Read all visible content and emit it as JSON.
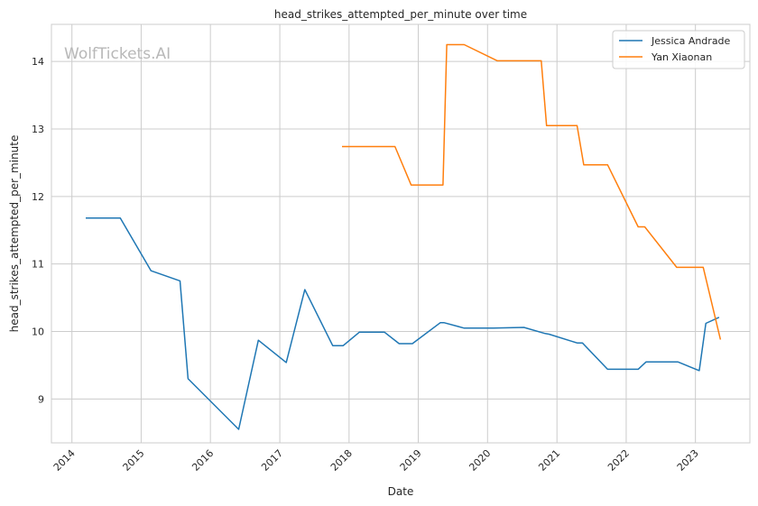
{
  "chart_data": {
    "type": "line",
    "title": "head_strikes_attempted_per_minute over time",
    "xlabel": "Date",
    "ylabel": "head_strikes_attempted_per_minute",
    "watermark": "WolfTickets.AI",
    "x_ticks": [
      "2014",
      "2015",
      "2016",
      "2017",
      "2018",
      "2019",
      "2020",
      "2021",
      "2022",
      "2023"
    ],
    "y_ticks": [
      9,
      10,
      11,
      12,
      13,
      14
    ],
    "xlim": [
      "2013-09-15",
      "2023-10-15"
    ],
    "ylim": [
      8.35,
      14.55
    ],
    "grid": true,
    "legend_position": "top-right",
    "series": [
      {
        "name": "Jessica Andrade",
        "color": "#1f77b4",
        "points": [
          [
            "2014-03-15",
            11.68
          ],
          [
            "2014-09-13",
            11.68
          ],
          [
            "2015-02-22",
            10.9
          ],
          [
            "2015-07-25",
            10.75
          ],
          [
            "2015-09-05",
            9.3
          ],
          [
            "2016-05-29",
            8.55
          ],
          [
            "2016-09-10",
            9.87
          ],
          [
            "2017-02-04",
            9.54
          ],
          [
            "2017-05-13",
            10.62
          ],
          [
            "2017-10-07",
            9.79
          ],
          [
            "2017-12-01",
            9.79
          ],
          [
            "2018-02-24",
            9.99
          ],
          [
            "2018-07-07",
            9.99
          ],
          [
            "2018-09-22",
            9.82
          ],
          [
            "2018-12-01",
            9.82
          ],
          [
            "2019-04-27",
            10.13
          ],
          [
            "2019-05-18",
            10.13
          ],
          [
            "2019-08-31",
            10.05
          ],
          [
            "2020-02-01",
            10.05
          ],
          [
            "2020-07-11",
            10.06
          ],
          [
            "2020-10-31",
            9.97
          ],
          [
            "2020-11-20",
            9.96
          ],
          [
            "2021-04-17",
            9.83
          ],
          [
            "2021-05-15",
            9.83
          ],
          [
            "2021-09-25",
            9.44
          ],
          [
            "2022-03-05",
            9.44
          ],
          [
            "2022-04-16",
            9.55
          ],
          [
            "2022-09-30",
            9.55
          ],
          [
            "2023-01-21",
            9.42
          ],
          [
            "2023-02-25",
            10.12
          ],
          [
            "2023-05-06",
            10.21
          ]
        ]
      },
      {
        "name": "Yan Xiaonan",
        "color": "#ff7f0e",
        "points": [
          [
            "2017-11-25",
            12.74
          ],
          [
            "2018-03-03",
            12.74
          ],
          [
            "2018-08-31",
            12.74
          ],
          [
            "2018-11-24",
            12.17
          ],
          [
            "2019-05-11",
            12.17
          ],
          [
            "2019-05-31",
            14.25
          ],
          [
            "2019-08-31",
            14.25
          ],
          [
            "2020-02-22",
            14.01
          ],
          [
            "2020-07-18",
            14.01
          ],
          [
            "2020-10-10",
            14.01
          ],
          [
            "2020-11-07",
            13.05
          ],
          [
            "2021-04-17",
            13.05
          ],
          [
            "2021-05-22",
            12.47
          ],
          [
            "2021-09-25",
            12.47
          ],
          [
            "2022-03-05",
            11.55
          ],
          [
            "2022-04-09",
            11.55
          ],
          [
            "2022-09-24",
            10.95
          ],
          [
            "2023-02-11",
            10.95
          ],
          [
            "2023-05-13",
            9.88
          ]
        ]
      }
    ]
  }
}
